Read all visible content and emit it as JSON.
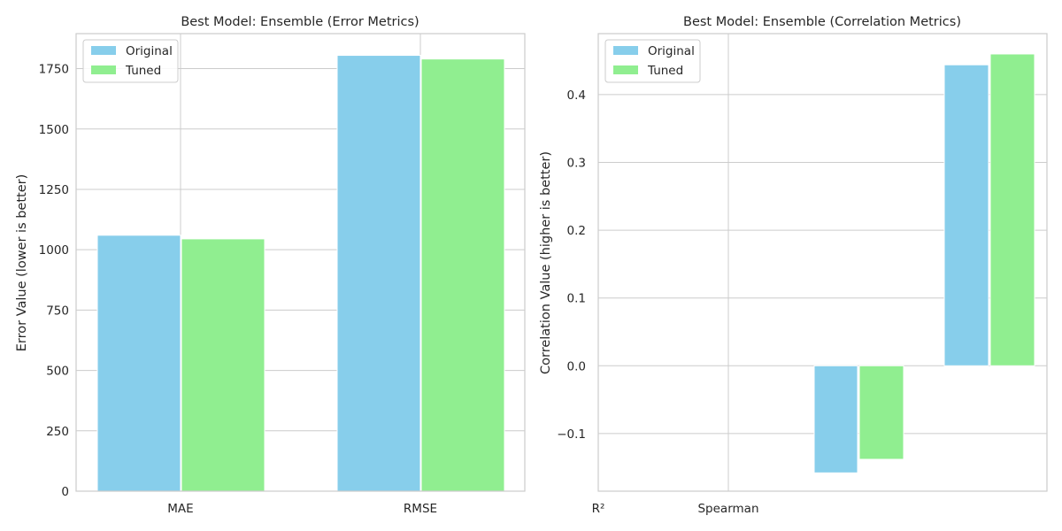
{
  "chart_data": [
    {
      "type": "bar",
      "title": "Best Model: Ensemble (Error Metrics)",
      "ylabel": "Error Value (lower is better)",
      "xlabel": "",
      "categories": [
        "MAE",
        "RMSE"
      ],
      "series": [
        {
          "name": "Original",
          "color": "#87ceeb",
          "values": [
            1060,
            1805
          ]
        },
        {
          "name": "Tuned",
          "color": "#90ee90",
          "values": [
            1045,
            1790
          ]
        }
      ],
      "ylim": [
        0,
        1895
      ],
      "yticks": [
        0,
        250,
        500,
        750,
        1000,
        1250,
        1500,
        1750
      ],
      "grid": true,
      "legend": "top-left"
    },
    {
      "type": "bar",
      "title": "Best Model: Ensemble (Correlation Metrics)",
      "ylabel": "Correlation Value (higher is better)",
      "xlabel": "",
      "categories": [
        "R²",
        "Spearman"
      ],
      "series": [
        {
          "name": "Original",
          "color": "#87ceeb",
          "values": [
            -0.158,
            0.444
          ]
        },
        {
          "name": "Tuned",
          "color": "#90ee90",
          "values": [
            -0.138,
            0.46
          ]
        }
      ],
      "ylim": [
        -0.185,
        0.49
      ],
      "yticks": [
        -0.1,
        0.0,
        0.1,
        0.2,
        0.3,
        0.4
      ],
      "ytick_labels": [
        "−0.1",
        "0.0",
        "0.1",
        "0.2",
        "0.3",
        "0.4"
      ],
      "grid": true,
      "legend": "top-left"
    }
  ]
}
